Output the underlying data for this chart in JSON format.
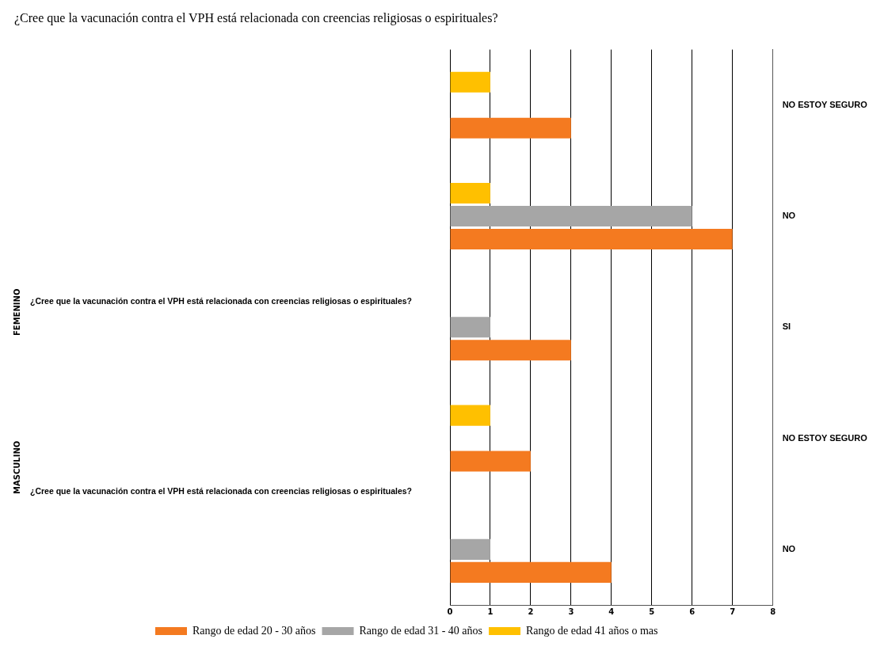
{
  "chart_data": {
    "type": "bar",
    "orientation": "horizontal",
    "title": "¿Cree que la vacunación contra el VPH está relacionada con creencias religiosas o espirituales?",
    "categories": [
      "NO ESTOY SEGURO",
      "NO",
      "SI",
      "NO ESTOY SEGURO",
      "NO"
    ],
    "series": [
      {
        "name": "Rango de edad 41 años o mas",
        "color": "#ffc000",
        "values": [
          1,
          1,
          null,
          1,
          null
        ]
      },
      {
        "name": "Rango de edad 31 - 40 años",
        "color": "#a6a6a6",
        "values": [
          null,
          6,
          1,
          null,
          1
        ]
      },
      {
        "name": "Rango de edad 20 - 30 años",
        "color": "#f47a20",
        "values": [
          3,
          7,
          3,
          2,
          4
        ]
      }
    ],
    "xlim": [
      0,
      8
    ],
    "xticks": [
      0,
      1,
      2,
      3,
      4,
      5,
      6,
      7,
      8
    ],
    "grid": "x",
    "legend": "bottom left",
    "annotations": [
      "FEMENINO",
      "¿Cree que la vacunación contra el VPH está relacionada con creencias religiosas o espirituales?",
      "MASCULINO",
      "¿Cree que la vacunación contra el VPH está relacionada con creencias religiosas o espirituales?"
    ]
  }
}
